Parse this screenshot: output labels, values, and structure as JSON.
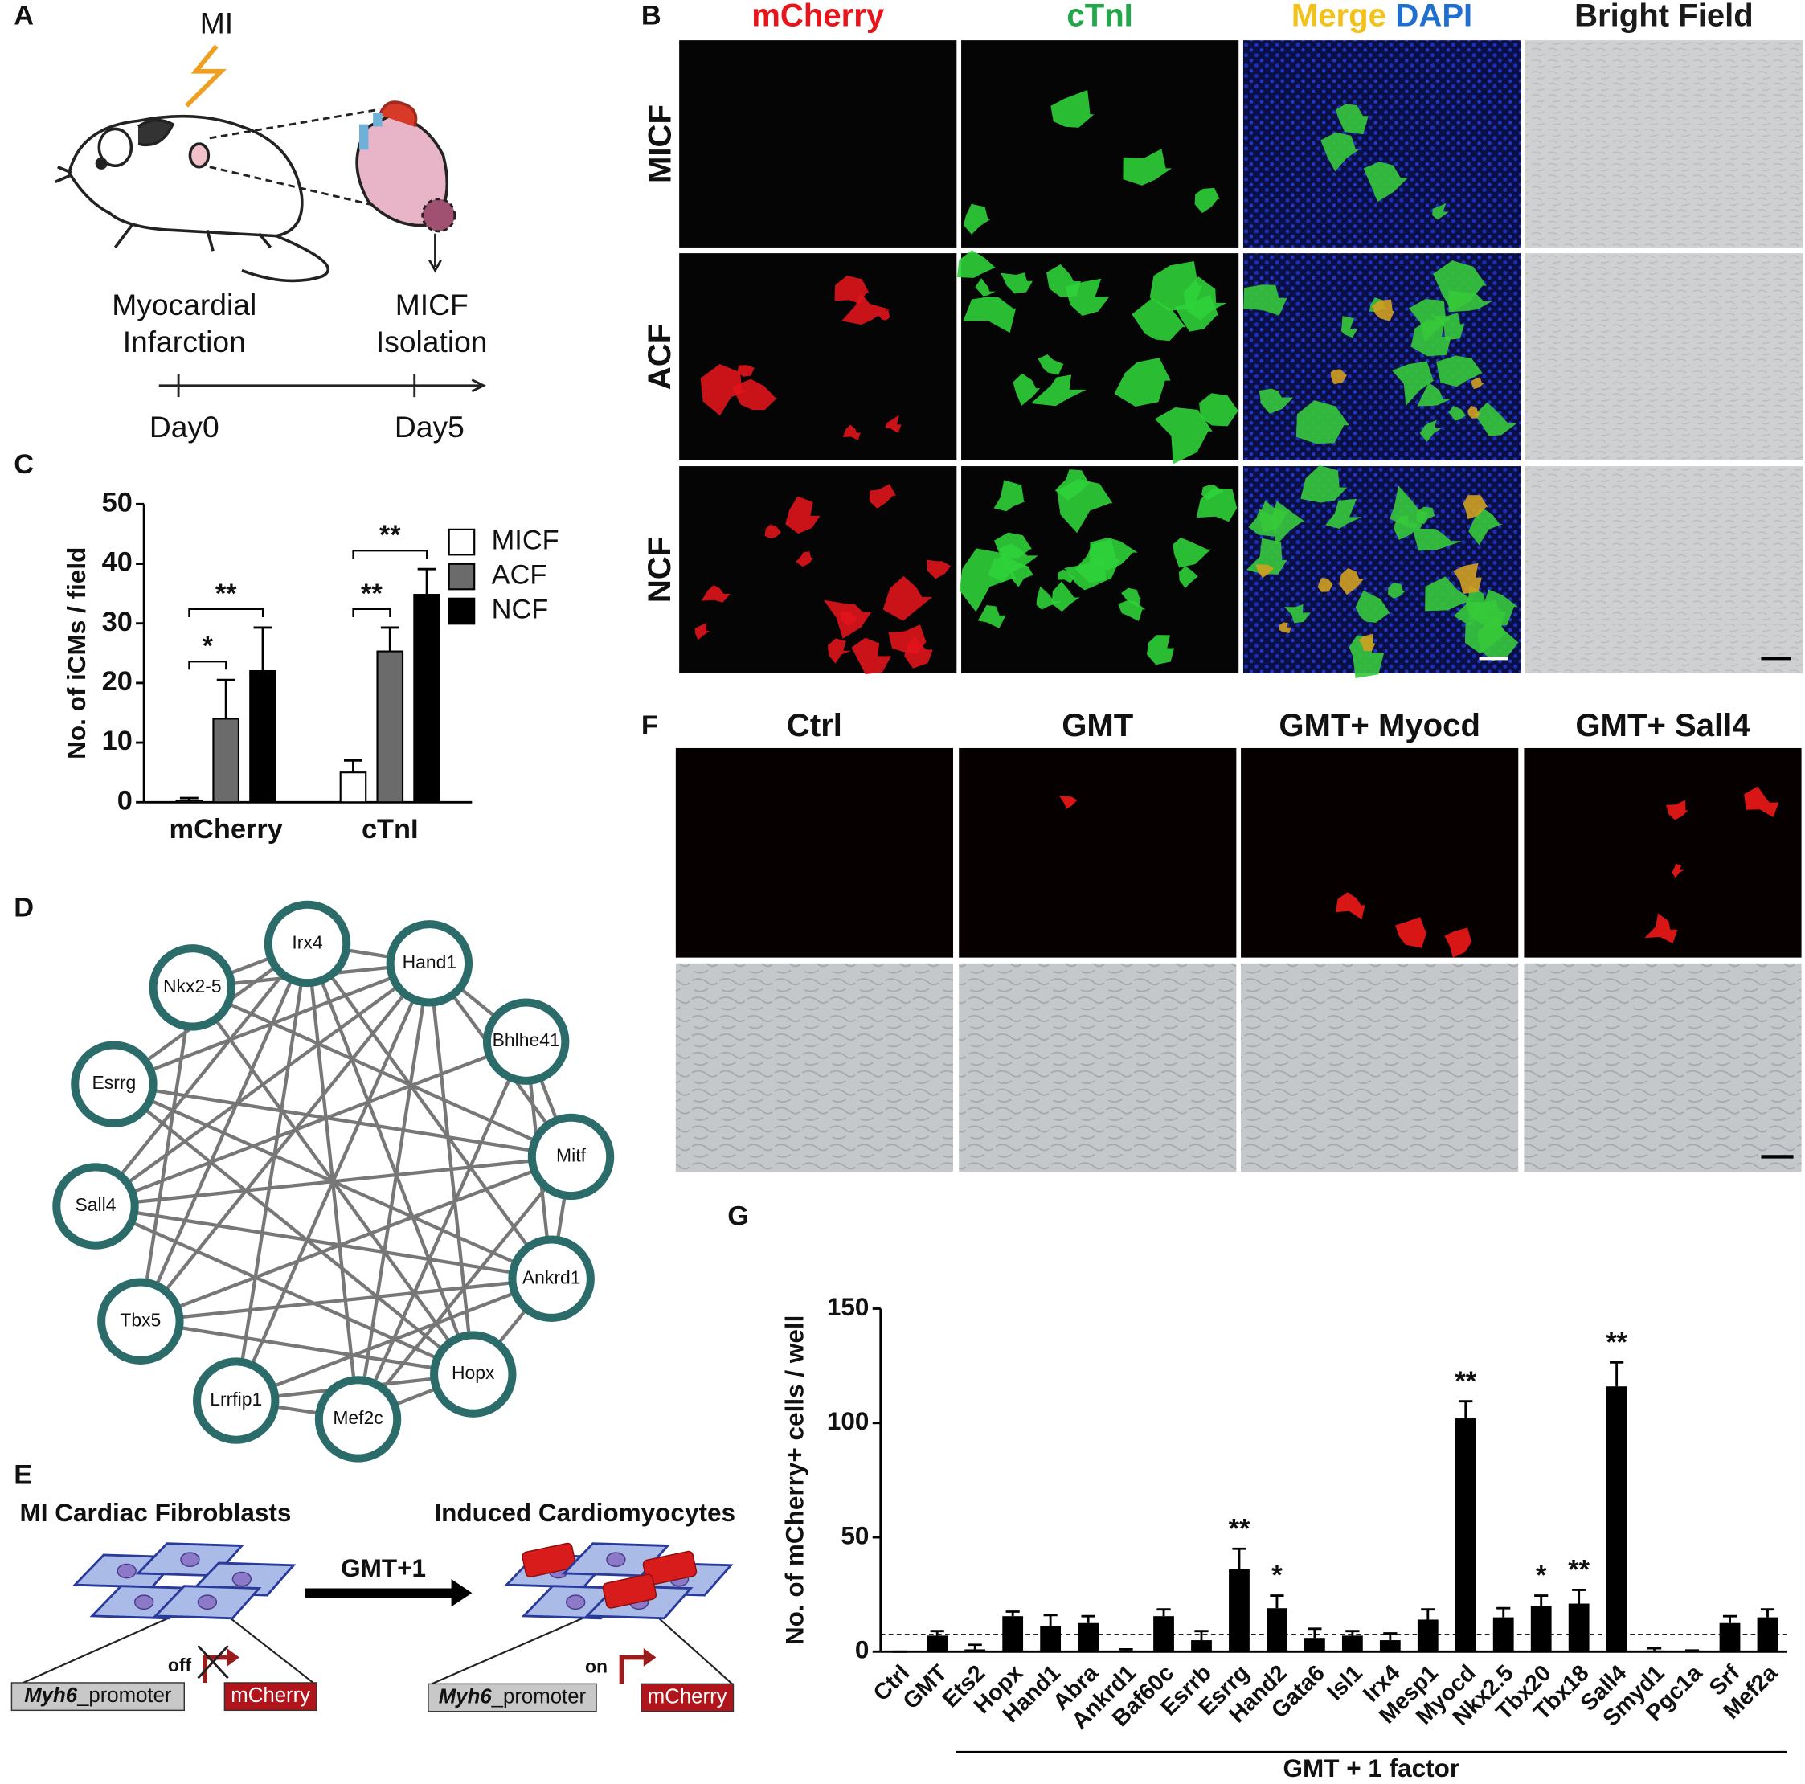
{
  "panel_labels": [
    "A",
    "B",
    "C",
    "D",
    "E",
    "F",
    "G"
  ],
  "panel_a": {
    "stimulus": "MI",
    "event_lines": [
      "Myocardial",
      "Infarction"
    ],
    "isolation_lines": [
      "MICF",
      "Isolation"
    ],
    "timeline": [
      "Day0",
      "Day5"
    ]
  },
  "panel_b": {
    "columns": [
      [
        {
          "text": "mCherry",
          "color": "#e8141c"
        }
      ],
      [
        {
          "text": "cTnI",
          "color": "#22a84a"
        }
      ],
      [
        {
          "text": "Merge",
          "color": "#f2c21b"
        },
        {
          "text": "DAPI",
          "color": "#1f6fd1"
        }
      ],
      [
        {
          "text": "Bright Field",
          "color": "#1a1a1a"
        }
      ]
    ],
    "rows": [
      "MICF",
      "ACF",
      "NCF"
    ]
  },
  "panel_d": {
    "nodes": [
      "Irx4",
      "Hand1",
      "Nkx2-5",
      "Bhlhe41",
      "Esrrg",
      "Mitf",
      "Sall4",
      "Ankrd1",
      "Tbx5",
      "Hopx",
      "Lrrfip1",
      "Mef2c"
    ],
    "edges": [
      [
        0,
        1
      ],
      [
        0,
        2
      ],
      [
        0,
        4
      ],
      [
        0,
        6
      ],
      [
        0,
        9
      ],
      [
        0,
        11
      ],
      [
        0,
        7
      ],
      [
        0,
        10
      ],
      [
        1,
        2
      ],
      [
        1,
        3
      ],
      [
        1,
        5
      ],
      [
        1,
        8
      ],
      [
        1,
        9
      ],
      [
        1,
        10
      ],
      [
        1,
        4
      ],
      [
        1,
        11
      ],
      [
        2,
        5
      ],
      [
        2,
        9
      ],
      [
        2,
        8
      ],
      [
        3,
        5
      ],
      [
        3,
        7
      ],
      [
        3,
        6
      ],
      [
        4,
        7
      ],
      [
        4,
        9
      ],
      [
        4,
        5
      ],
      [
        5,
        6
      ],
      [
        5,
        8
      ],
      [
        5,
        7
      ],
      [
        5,
        11
      ],
      [
        6,
        7
      ],
      [
        6,
        9
      ],
      [
        7,
        8
      ],
      [
        7,
        9
      ],
      [
        7,
        10
      ],
      [
        8,
        9
      ],
      [
        8,
        0
      ],
      [
        9,
        10
      ],
      [
        9,
        11
      ],
      [
        10,
        11
      ],
      [
        11,
        3
      ],
      [
        6,
        1
      ]
    ]
  },
  "panel_e": {
    "source": "MI Cardiac Fibroblasts",
    "target": "Induced Cardiomyocytes",
    "treatment": "GMT+1",
    "state_off": "off",
    "state_on": "on",
    "promoter_gene": "Myh6",
    "promoter_suffix": "_promoter",
    "reporter": "mCherry"
  },
  "panel_f": {
    "columns": [
      "Ctrl",
      "GMT",
      "GMT+ Myocd",
      "GMT+ Sall4"
    ]
  },
  "chart_data": [
    {
      "type": "grouped_bar",
      "ylabel": "No. of iCMs / field",
      "categories": [
        "mCherry",
        "cTnI"
      ],
      "series": [
        {
          "name": "MICF",
          "color": "#ffffff",
          "values": [
            0.3,
            5
          ],
          "errors": [
            0.4,
            2
          ]
        },
        {
          "name": "ACF",
          "color": "#6b6b6b",
          "values": [
            14,
            25.3
          ],
          "errors": [
            6.5,
            4
          ]
        },
        {
          "name": "NCF",
          "color": "#000000",
          "values": [
            22,
            34.8
          ],
          "errors": [
            7.3,
            4.3
          ]
        }
      ],
      "ylim": [
        0,
        50
      ],
      "yticks": [
        0,
        10,
        20,
        30,
        40,
        50
      ],
      "legend": "upper right",
      "significance": [
        {
          "category": 0,
          "pair": [
            0,
            1
          ],
          "label": "*"
        },
        {
          "category": 0,
          "pair": [
            0,
            2
          ],
          "label": "**"
        },
        {
          "category": 1,
          "pair": [
            0,
            1
          ],
          "label": "**"
        },
        {
          "category": 1,
          "pair": [
            0,
            2
          ],
          "label": "**"
        }
      ]
    },
    {
      "type": "bar",
      "ylabel": "No. of mCherry+ cells / well",
      "xlabel": "GMT + 1 factor",
      "categories": [
        "Ctrl",
        "GMT",
        "Ets2",
        "Hopx",
        "Hand1",
        "Abra",
        "Ankrd1",
        "Baf60c",
        "Esrrb",
        "Esrrg",
        "Hand2",
        "Gata6",
        "Isl1",
        "Irx4",
        "Mesp1",
        "Myocd",
        "Nkx2.5",
        "Tbx20",
        "Tbx18",
        "Sall4",
        "Smyd1",
        "Pgc1a",
        "Srf",
        "Mef2a"
      ],
      "values": [
        0,
        7,
        1,
        15.5,
        11,
        12.5,
        0,
        15.5,
        5,
        36,
        19,
        6,
        7,
        5,
        14,
        102,
        15,
        20,
        21,
        116,
        0.5,
        0,
        12.5,
        15
      ],
      "errors": [
        0,
        2,
        2,
        2,
        5,
        3,
        1,
        3,
        4,
        9,
        5.5,
        4,
        2,
        3,
        4.5,
        7.5,
        4,
        4.5,
        6,
        10.5,
        1,
        0.5,
        3,
        3.5
      ],
      "color": "#000000",
      "ylim": [
        0,
        150
      ],
      "yticks": [
        0,
        50,
        100,
        150
      ],
      "reference_line": 7.5,
      "group_from": 2,
      "annotations": [
        {
          "category": 9,
          "label": "**"
        },
        {
          "category": 10,
          "label": "*"
        },
        {
          "category": 15,
          "label": "**"
        },
        {
          "category": 17,
          "label": "*"
        },
        {
          "category": 18,
          "label": "**"
        },
        {
          "category": 19,
          "label": "**"
        }
      ]
    }
  ]
}
